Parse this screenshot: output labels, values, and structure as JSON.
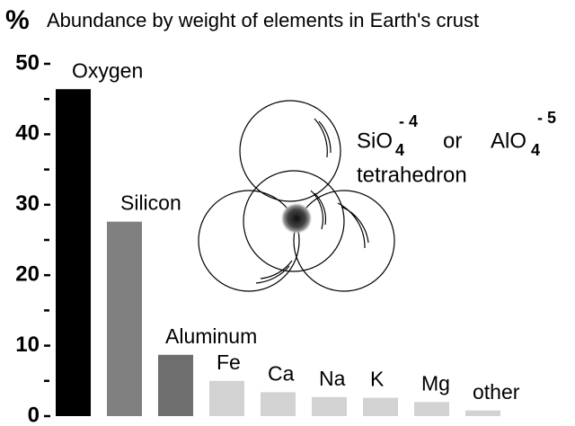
{
  "chart_data": {
    "type": "bar",
    "title_symbol": "%",
    "title": "Abundance by weight of elements in Earth's crust",
    "categories": [
      "Oxygen",
      "Silicon",
      "Aluminum",
      "Fe",
      "Ca",
      "Na",
      "K",
      "Mg",
      "other"
    ],
    "values": [
      46.4,
      27.6,
      8.7,
      5.0,
      3.4,
      2.7,
      2.6,
      2.0,
      0.8
    ],
    "colors": [
      "#000000",
      "#808080",
      "#6e6e6e",
      "#d2d2d2",
      "#d2d2d2",
      "#d2d2d2",
      "#d2d2d2",
      "#d2d2d2",
      "#d2d2d2"
    ],
    "ylim": [
      0,
      50
    ],
    "yticks": [
      0,
      10,
      20,
      30,
      40,
      50
    ],
    "minor_yticks": [
      5,
      15,
      25,
      35,
      45
    ],
    "annotation": {
      "formula_1": {
        "text": "SiO",
        "sub": "4",
        "sup": "- 4"
      },
      "conjunction": "or",
      "formula_2": {
        "text": "AlO",
        "sub": "4",
        "sup": "- 5"
      },
      "caption": "tetrahedron"
    }
  }
}
